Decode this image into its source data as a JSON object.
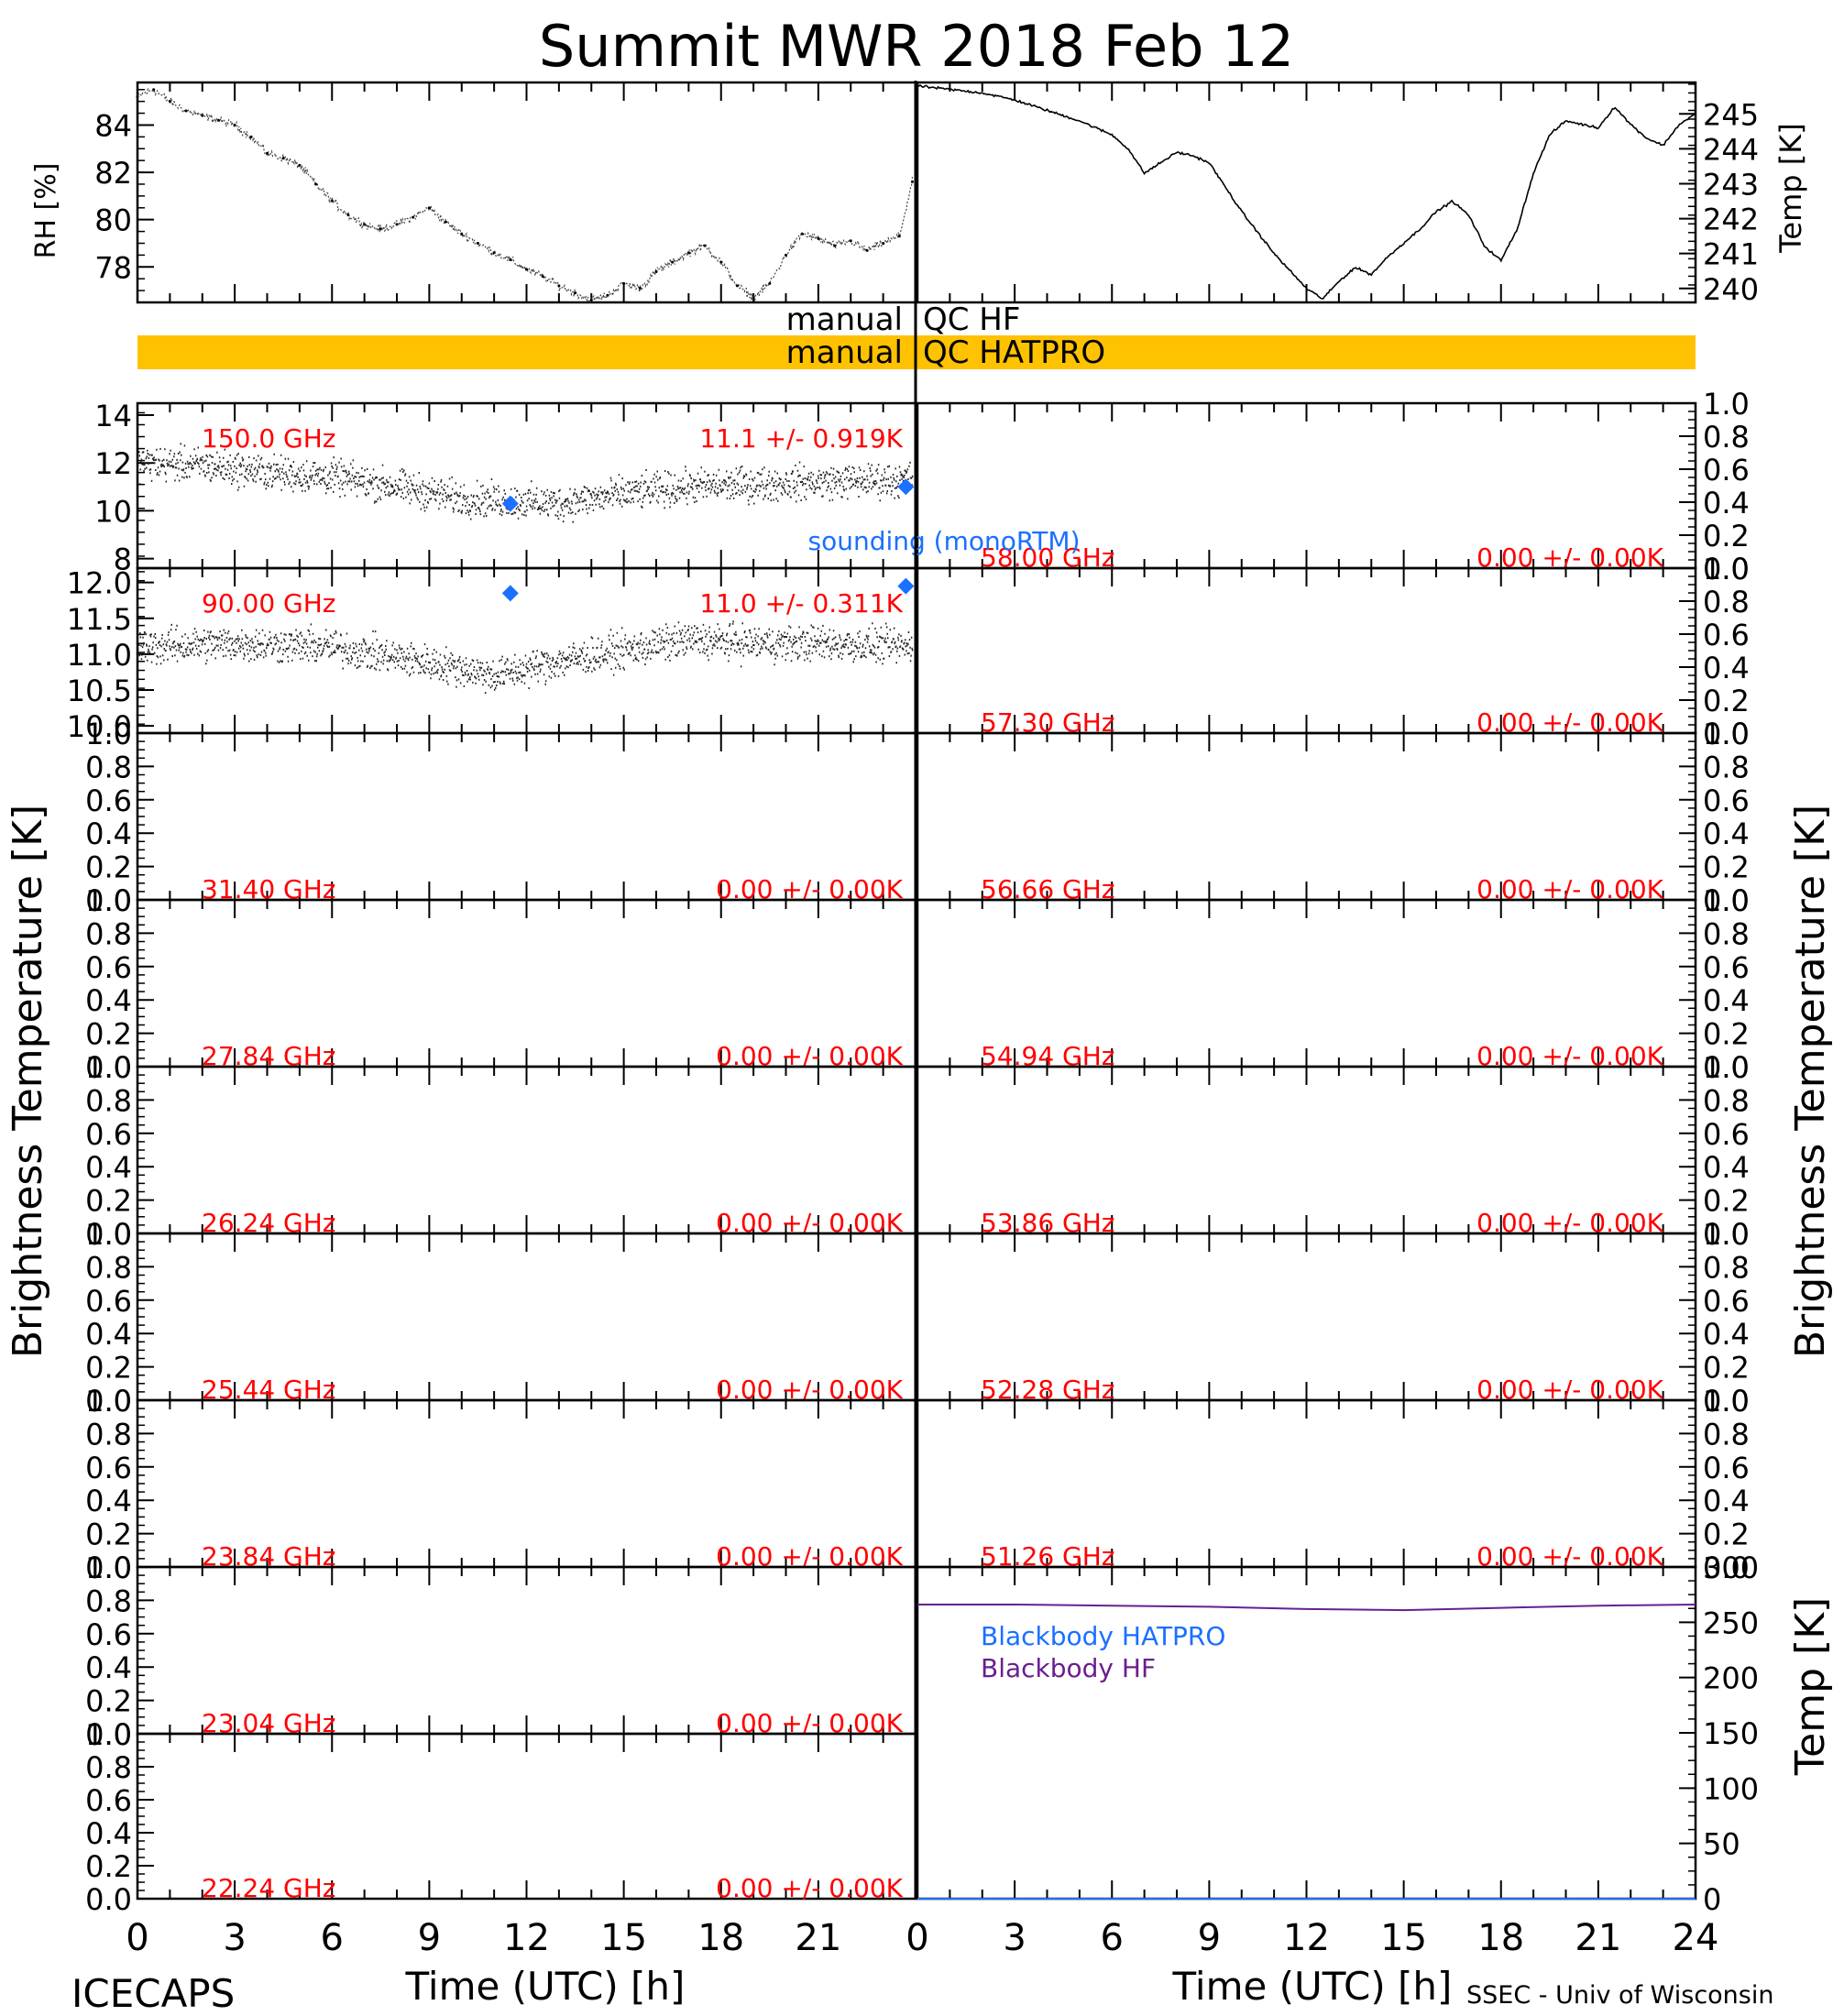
{
  "title": "Summit MWR 2018 Feb 12",
  "footer": {
    "left": "ICECAPS",
    "right": "SSEC - Univ of Wisconsin",
    "time_label": "Time (UTC) [h]",
    "x_ticks": [
      "0",
      "3",
      "6",
      "9",
      "12",
      "15",
      "18",
      "21",
      "24"
    ]
  },
  "colors": {
    "ink": "#000000",
    "label_red": "#ff0000",
    "sounding_blue": "#1a70ff",
    "qc_bar": "#ffc200",
    "bb_hatpro": "#1a70ff",
    "bb_hf": "#6a1f8f"
  },
  "qc": {
    "hf_left": "manual",
    "hf_right": "QC HF",
    "hatpro_left": "manual",
    "hatpro_right": "QC HATPRO"
  },
  "sounding_label": "sounding (monoRTM)",
  "side_labels": {
    "left": "Brightness Temperature [K]",
    "right": "Brightness Temperature [K]",
    "rh": "RH [%]",
    "temp": "Temp [K]",
    "bb_temp": "Temp [K]"
  },
  "chart_data": [
    {
      "type": "scatter",
      "panel": "rh",
      "ylabel": "RH [%]",
      "xlim": [
        0,
        24
      ],
      "ylim": [
        76.5,
        85.8
      ],
      "yticks": [
        "78",
        "80",
        "82",
        "84"
      ],
      "x": [
        0,
        0.5,
        1,
        1.5,
        2,
        2.5,
        3,
        3.5,
        4,
        4.5,
        5,
        5.5,
        6,
        6.5,
        7,
        7.5,
        8,
        8.5,
        9,
        9.5,
        10,
        10.5,
        11,
        11.5,
        12,
        12.5,
        13,
        13.5,
        14,
        14.5,
        15,
        15.5,
        16,
        16.5,
        17,
        17.5,
        18,
        18.5,
        19,
        19.5,
        20,
        20.5,
        21,
        21.5,
        22,
        22.5,
        23,
        23.5,
        23.9
      ],
      "y": [
        85.2,
        85.5,
        85.0,
        84.6,
        84.4,
        84.2,
        84.0,
        83.5,
        82.8,
        82.6,
        82.3,
        81.5,
        80.8,
        80.2,
        79.8,
        79.6,
        79.8,
        80.1,
        80.5,
        79.9,
        79.4,
        79.0,
        78.6,
        78.3,
        77.9,
        77.6,
        77.2,
        76.9,
        76.6,
        76.8,
        77.3,
        77.1,
        77.8,
        78.2,
        78.6,
        78.9,
        78.2,
        77.2,
        76.7,
        77.3,
        78.5,
        79.4,
        79.2,
        78.9,
        79.1,
        78.7,
        79.0,
        79.3,
        81.6
      ]
    },
    {
      "type": "line",
      "panel": "temp",
      "ylabel": "Temp [K]",
      "xlim": [
        0,
        24
      ],
      "ylim": [
        239.6,
        245.9
      ],
      "yticks": [
        "240",
        "241",
        "242",
        "243",
        "244",
        "245"
      ],
      "x": [
        0,
        1,
        2,
        3,
        4,
        5,
        6,
        6.5,
        7,
        7.5,
        8,
        8.5,
        9,
        10,
        11,
        12,
        12.5,
        13,
        13.5,
        14,
        14.5,
        15,
        15.5,
        16,
        16.5,
        17,
        17.5,
        18,
        18.5,
        19,
        19.5,
        20,
        20.5,
        21,
        21.5,
        22,
        22.5,
        23,
        23.5,
        24
      ],
      "y": [
        245.8,
        245.7,
        245.6,
        245.4,
        245.1,
        244.8,
        244.4,
        244.0,
        243.3,
        243.6,
        243.9,
        243.8,
        243.6,
        242.2,
        241.0,
        240.0,
        239.7,
        240.2,
        240.6,
        240.4,
        240.9,
        241.3,
        241.7,
        242.2,
        242.5,
        242.1,
        241.2,
        240.8,
        241.7,
        243.3,
        244.4,
        244.8,
        244.7,
        244.6,
        245.2,
        244.7,
        244.3,
        244.1,
        244.7,
        245.0
      ]
    },
    {
      "type": "scatter",
      "panel": "left-1",
      "channel": "150.0 GHz",
      "stat": "11.1 +/- 0.919K",
      "ylim": [
        7.6,
        14.5
      ],
      "yticks": [
        "8",
        "10",
        "12",
        "14"
      ],
      "xlim": [
        0,
        24
      ],
      "smooth": [
        [
          0,
          12.0
        ],
        [
          2,
          11.9
        ],
        [
          4,
          11.6
        ],
        [
          6,
          11.4
        ],
        [
          8,
          11.0
        ],
        [
          10,
          10.5
        ],
        [
          11.5,
          10.4
        ],
        [
          13,
          10.3
        ],
        [
          15,
          10.7
        ],
        [
          17,
          11.0
        ],
        [
          19,
          11.1
        ],
        [
          21,
          11.2
        ],
        [
          23.9,
          11.3
        ]
      ],
      "noise": 1.3,
      "sounding_x": [
        11.5,
        23.7
      ],
      "sounding_y": [
        10.3,
        11.0
      ]
    },
    {
      "type": "scatter",
      "panel": "left-2",
      "channel": "90.00 GHz",
      "stat": "11.0 +/- 0.311K",
      "ylim": [
        9.9,
        12.2
      ],
      "yticks": [
        "10.0",
        "10.5",
        "11.0",
        "11.5",
        "12.0"
      ],
      "xlim": [
        0,
        24
      ],
      "smooth": [
        [
          0,
          11.1
        ],
        [
          3,
          11.15
        ],
        [
          6,
          11.1
        ],
        [
          8,
          10.95
        ],
        [
          10,
          10.8
        ],
        [
          11,
          10.7
        ],
        [
          13,
          10.9
        ],
        [
          15,
          11.05
        ],
        [
          17,
          11.2
        ],
        [
          19,
          11.15
        ],
        [
          21,
          11.15
        ],
        [
          23.9,
          11.1
        ]
      ],
      "noise": 0.45,
      "sounding_x": [
        11.5,
        23.7
      ],
      "sounding_y": [
        11.85,
        11.95
      ]
    },
    {
      "type": "scatter",
      "panel": "left-3",
      "channel": "31.40 GHz",
      "stat": "0.00 +/- 0.00K",
      "ylim": [
        0,
        1
      ],
      "yticks": [
        "0.0",
        "0.2",
        "0.4",
        "0.6",
        "0.8",
        "1.0"
      ]
    },
    {
      "type": "scatter",
      "panel": "left-4",
      "channel": "27.84 GHz",
      "stat": "0.00 +/- 0.00K",
      "ylim": [
        0,
        1
      ],
      "yticks": [
        "0.0",
        "0.2",
        "0.4",
        "0.6",
        "0.8",
        "1.0"
      ]
    },
    {
      "type": "scatter",
      "panel": "left-5",
      "channel": "26.24 GHz",
      "stat": "0.00 +/- 0.00K",
      "ylim": [
        0,
        1
      ],
      "yticks": [
        "0.0",
        "0.2",
        "0.4",
        "0.6",
        "0.8",
        "1.0"
      ]
    },
    {
      "type": "scatter",
      "panel": "left-6",
      "channel": "25.44 GHz",
      "stat": "0.00 +/- 0.00K",
      "ylim": [
        0,
        1
      ],
      "yticks": [
        "0.0",
        "0.2",
        "0.4",
        "0.6",
        "0.8",
        "1.0"
      ]
    },
    {
      "type": "scatter",
      "panel": "left-7",
      "channel": "23.84 GHz",
      "stat": "0.00 +/- 0.00K",
      "ylim": [
        0,
        1
      ],
      "yticks": [
        "0.0",
        "0.2",
        "0.4",
        "0.6",
        "0.8",
        "1.0"
      ]
    },
    {
      "type": "scatter",
      "panel": "left-8",
      "channel": "23.04 GHz",
      "stat": "0.00 +/- 0.00K",
      "ylim": [
        0,
        1
      ],
      "yticks": [
        "0.0",
        "0.2",
        "0.4",
        "0.6",
        "0.8",
        "1.0"
      ]
    },
    {
      "type": "scatter",
      "panel": "left-9",
      "channel": "22.24 GHz",
      "stat": "0.00 +/- 0.00K",
      "ylim": [
        0,
        1
      ],
      "yticks": [
        "0.0",
        "0.2",
        "0.4",
        "0.6",
        "0.8",
        "1.0"
      ]
    },
    {
      "type": "scatter",
      "panel": "right-1",
      "channel": "58.00 GHz",
      "stat": "0.00 +/- 0.00K",
      "ylim": [
        0,
        1
      ],
      "yticks": [
        "0.0",
        "0.2",
        "0.4",
        "0.6",
        "0.8",
        "1.0"
      ]
    },
    {
      "type": "scatter",
      "panel": "right-2",
      "channel": "57.30 GHz",
      "stat": "0.00 +/- 0.00K",
      "ylim": [
        0,
        1
      ],
      "yticks": [
        "0.0",
        "0.2",
        "0.4",
        "0.6",
        "0.8",
        "1.0"
      ]
    },
    {
      "type": "scatter",
      "panel": "right-3",
      "channel": "56.66 GHz",
      "stat": "0.00 +/- 0.00K",
      "ylim": [
        0,
        1
      ],
      "yticks": [
        "0.0",
        "0.2",
        "0.4",
        "0.6",
        "0.8",
        "1.0"
      ]
    },
    {
      "type": "scatter",
      "panel": "right-4",
      "channel": "54.94 GHz",
      "stat": "0.00 +/- 0.00K",
      "ylim": [
        0,
        1
      ],
      "yticks": [
        "0.0",
        "0.2",
        "0.4",
        "0.6",
        "0.8",
        "1.0"
      ]
    },
    {
      "type": "scatter",
      "panel": "right-5",
      "channel": "53.86 GHz",
      "stat": "0.00 +/- 0.00K",
      "ylim": [
        0,
        1
      ],
      "yticks": [
        "0.0",
        "0.2",
        "0.4",
        "0.6",
        "0.8",
        "1.0"
      ]
    },
    {
      "type": "scatter",
      "panel": "right-6",
      "channel": "52.28 GHz",
      "stat": "0.00 +/- 0.00K",
      "ylim": [
        0,
        1
      ],
      "yticks": [
        "0.0",
        "0.2",
        "0.4",
        "0.6",
        "0.8",
        "1.0"
      ]
    },
    {
      "type": "scatter",
      "panel": "right-7",
      "channel": "51.26 GHz",
      "stat": "0.00 +/- 0.00K",
      "ylim": [
        0,
        1
      ],
      "yticks": [
        "0.0",
        "0.2",
        "0.4",
        "0.6",
        "0.8",
        "1.0"
      ]
    },
    {
      "type": "line",
      "panel": "blackbody",
      "ylabel": "Temp [K]",
      "xlim": [
        0,
        24
      ],
      "ylim": [
        0,
        300
      ],
      "yticks": [
        "0",
        "50",
        "100",
        "150",
        "200",
        "250",
        "300"
      ],
      "legend": [
        "Blackbody HATPRO",
        "Blackbody HF"
      ],
      "series": [
        {
          "name": "Blackbody HATPRO",
          "x": [
            0,
            24
          ],
          "y": [
            0,
            0
          ]
        },
        {
          "name": "Blackbody HF",
          "x": [
            0,
            3,
            6,
            9,
            12,
            15,
            18,
            21,
            24
          ],
          "y": [
            266,
            266,
            265,
            264,
            262,
            261,
            263,
            265,
            266
          ]
        }
      ]
    }
  ]
}
